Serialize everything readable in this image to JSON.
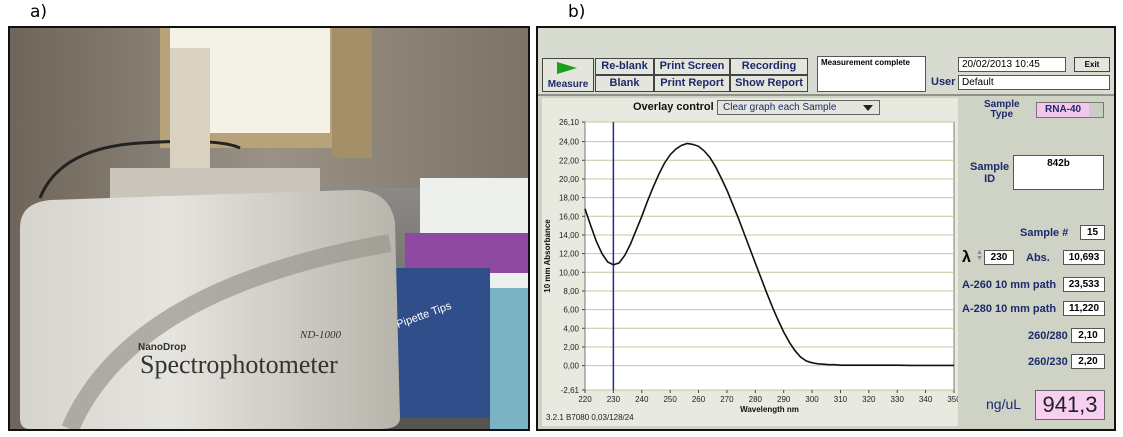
{
  "panels": {
    "a_label": "a)",
    "b_label": "b)"
  },
  "photo": {
    "brand": "NanoDrop",
    "model": "ND-1000",
    "device_name": "Spectrophotometer",
    "box_label": "Pipette Tips"
  },
  "toolbar": {
    "measure_label": "Measure",
    "reblank_label": "Re-blank",
    "blank_label": "Blank",
    "print_screen_label": "Print Screen",
    "print_report_label": "Print Report",
    "recording_label": "Recording",
    "show_report_label": "Show Report",
    "status_text": "Measurement complete",
    "datetime": "20/02/2013  10:45",
    "exit_label": "Exit",
    "user_label": "User",
    "user_value": "Default"
  },
  "graph": {
    "overlay_label": "Overlay control",
    "overlay_value": "Clear graph each Sample",
    "version": "3.2.1 B7080 0,03/128/24"
  },
  "right_panel": {
    "sample_type_label": "Sample\nType",
    "sample_type_value": "RNA-40",
    "sample_id_label": "Sample\nID",
    "sample_id_value": "842b",
    "sample_num_label": "Sample #",
    "sample_num_value": "15",
    "lambda_symbol": "λ",
    "lambda_value": "230",
    "abs_label": "Abs.",
    "abs_value": "10,693",
    "a260_label": "A-260 10 mm path",
    "a260_value": "23,533",
    "a280_label": "A-280 10 mm path",
    "a280_value": "11,220",
    "r260_280_label": "260/280",
    "r260_280_value": "2,10",
    "r260_230_label": "260/230",
    "r260_230_value": "2,20",
    "conc_label": "ng/uL",
    "conc_value": "941,3"
  },
  "colors": {
    "curve": "#111111",
    "cursor": "#1f2aa0",
    "grid": "#c9c79a",
    "plot_bg": "#ffffff",
    "conc_bg": "#f6cff2"
  },
  "chart_data": {
    "type": "line",
    "title": "",
    "xlabel": "Wavelength nm",
    "ylabel": "10 mm Absorbance",
    "xlim": [
      220,
      350
    ],
    "ylim": [
      -2.61,
      26.1
    ],
    "x_ticks": [
      "220",
      "230",
      "240",
      "250",
      "260",
      "270",
      "280",
      "290",
      "300",
      "310",
      "320",
      "330",
      "340",
      "350"
    ],
    "y_ticks": [
      "-2,61",
      "0,00",
      "2,00",
      "4,00",
      "6,00",
      "8,00",
      "10,00",
      "12,00",
      "14,00",
      "16,00",
      "18,00",
      "20,00",
      "22,00",
      "24,00",
      "26,10"
    ],
    "y_tick_values": [
      -2.61,
      0,
      2,
      4,
      6,
      8,
      10,
      12,
      14,
      16,
      18,
      20,
      22,
      24,
      26.1
    ],
    "cursor_x": 230,
    "series": [
      {
        "x": [
          220,
          222,
          224,
          226,
          228,
          230,
          232,
          234,
          236,
          238,
          240,
          242,
          244,
          246,
          248,
          250,
          252,
          254,
          256,
          258,
          260,
          262,
          264,
          266,
          268,
          270,
          272,
          274,
          276,
          278,
          280,
          282,
          284,
          286,
          288,
          290,
          292,
          294,
          296,
          298,
          300,
          302,
          304,
          306,
          308,
          310,
          315,
          320,
          325,
          330,
          335,
          340,
          345,
          350
        ],
        "values": [
          16.8,
          15.0,
          13.3,
          12.0,
          11.1,
          10.8,
          11.0,
          11.8,
          13.0,
          14.5,
          16.0,
          17.6,
          19.1,
          20.5,
          21.7,
          22.6,
          23.2,
          23.6,
          23.8,
          23.7,
          23.5,
          23.0,
          22.3,
          21.3,
          20.1,
          18.8,
          17.3,
          15.8,
          14.2,
          12.6,
          11.0,
          9.4,
          7.8,
          6.3,
          4.9,
          3.6,
          2.5,
          1.6,
          0.9,
          0.5,
          0.3,
          0.2,
          0.15,
          0.1,
          0.1,
          0.05,
          0.05,
          0.05,
          0.05,
          0.05,
          0.03,
          0.03,
          0.02,
          0.02
        ]
      }
    ]
  }
}
